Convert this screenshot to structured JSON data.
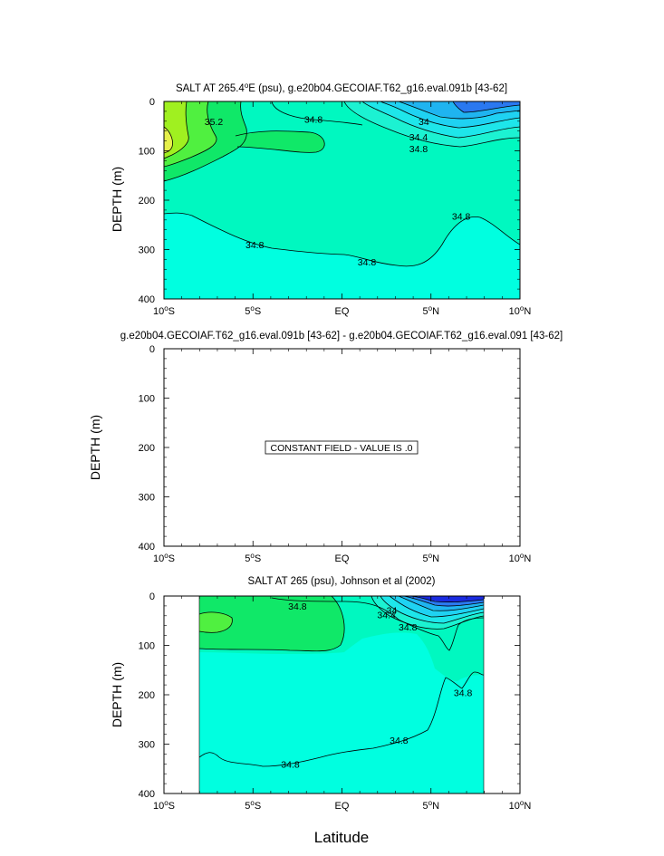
{
  "chart_data": [
    {
      "type": "contour",
      "title": "SALT AT 265.4",
      "title_sup": "o",
      "title_rest": "E (psu), g.e20b04.GECOIAF.T62_g16.eval.091b [43-62]",
      "ylabel": "DEPTH (m)",
      "xlabel": "",
      "xlim": [
        -10,
        10
      ],
      "ylim": [
        0,
        400
      ],
      "xticks": [
        -10,
        -5,
        0,
        5,
        10
      ],
      "yticks": [
        0,
        100,
        200,
        300,
        400
      ],
      "contour_labels": [
        {
          "text": "35.2",
          "lat": -7.2,
          "depth": 40
        },
        {
          "text": "34.8",
          "lat": -1.6,
          "depth": 36
        },
        {
          "text": "34",
          "lat": 4.6,
          "depth": 40
        },
        {
          "text": "34.4",
          "lat": 4.3,
          "depth": 72
        },
        {
          "text": "34.8",
          "lat": 4.3,
          "depth": 95
        },
        {
          "text": "34.8",
          "lat": -4.9,
          "depth": 290
        },
        {
          "text": "34.8",
          "lat": 1.4,
          "depth": 325
        },
        {
          "text": "34.8",
          "lat": 6.7,
          "depth": 232
        }
      ]
    },
    {
      "type": "contour",
      "title": "g.e20b04.GECOIAF.T62_g16.eval.091b [43-62] - g.e20b04.GECOIAF.T62_g16.eval.091 [43-62]",
      "ylabel": "DEPTH (m)",
      "xlim": [
        -10,
        10
      ],
      "ylim": [
        0,
        400
      ],
      "xticks": [
        -10,
        -5,
        0,
        5,
        10
      ],
      "yticks": [
        0,
        100,
        200,
        300,
        400
      ],
      "annotation": "CONSTANT FIELD - VALUE IS .0"
    },
    {
      "type": "contour",
      "title": "SALT AT 265 (psu), Johnson et al (2002)",
      "ylabel": "DEPTH (m)",
      "xlabel": "Latitude",
      "xlim": [
        -10,
        10
      ],
      "ylim": [
        0,
        400
      ],
      "data_lat_range": [
        -8,
        8
      ],
      "xticks": [
        -10,
        -5,
        0,
        5,
        10
      ],
      "yticks": [
        0,
        100,
        200,
        300,
        400
      ],
      "contour_labels": [
        {
          "text": "34.8",
          "lat": -2.5,
          "depth": 20
        },
        {
          "text": "34",
          "lat": 2.8,
          "depth": 28
        },
        {
          "text": "34.4",
          "lat": 2.5,
          "depth": 38
        },
        {
          "text": "34.8",
          "lat": 3.7,
          "depth": 62
        },
        {
          "text": "34.8",
          "lat": 6.8,
          "depth": 195
        },
        {
          "text": "34.8",
          "lat": 3.2,
          "depth": 292
        },
        {
          "text": "34.8",
          "lat": -2.9,
          "depth": 340
        }
      ]
    }
  ],
  "tick_labels": {
    "x": [
      {
        "main": "10",
        "sup": "o",
        "tail": "S"
      },
      {
        "main": "5",
        "sup": "o",
        "tail": "S"
      },
      {
        "main": "EQ",
        "sup": "",
        "tail": ""
      },
      {
        "main": "5",
        "sup": "o",
        "tail": "N"
      },
      {
        "main": "10",
        "sup": "o",
        "tail": "N"
      }
    ],
    "y": [
      "0",
      "100",
      "200",
      "300",
      "400"
    ]
  },
  "colors": {
    "c_low1": "#1a2be0",
    "c_low2": "#2a78f0",
    "c_34": "#1fb4f0",
    "c_342": "#1fd2f2",
    "c_344": "#1ee6ea",
    "c_346": "#1cf2d2",
    "c_348": "#00f8c0",
    "c_deep": "#00ffe0",
    "c_35": "#10e868",
    "c_352": "#50f040",
    "c_354": "#a0f020",
    "c_356": "#e6f04a"
  }
}
